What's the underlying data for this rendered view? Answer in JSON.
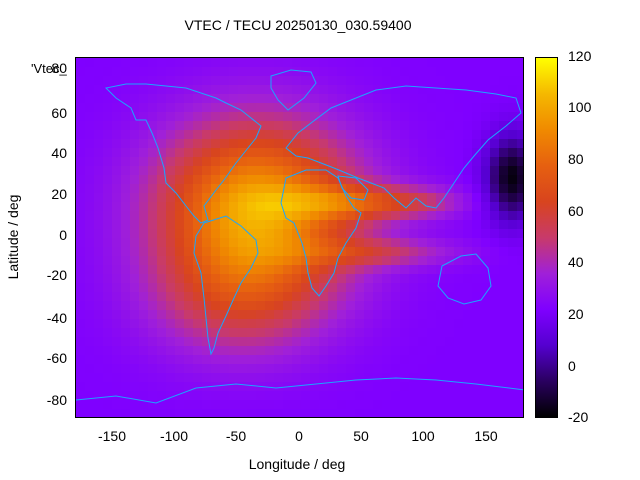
{
  "title": "VTEC / TECU 20250130_030.59400",
  "series_key": "'Vtec_",
  "x_axis": {
    "label": "Longitude / deg",
    "ticks": [
      "-150",
      "-100",
      "-50",
      "0",
      "50",
      "100",
      "150"
    ],
    "range": [
      -180,
      180
    ]
  },
  "y_axis": {
    "label": "Latitude / deg",
    "ticks": [
      "80",
      "60",
      "40",
      "20",
      "0",
      "-20",
      "-40",
      "-60",
      "-80"
    ],
    "range": [
      -90,
      90
    ]
  },
  "colorbar": {
    "ticks": [
      "120",
      "100",
      "80",
      "60",
      "40",
      "20",
      "0",
      "-20"
    ],
    "range": [
      -20,
      120
    ],
    "colors": [
      "#000000",
      "#2a0060",
      "#5500d0",
      "#7f00ff",
      "#a020d8",
      "#c83a6a",
      "#d8441e",
      "#e66010",
      "#f08a00",
      "#f5b800",
      "#ffff00"
    ]
  },
  "chart_data": {
    "type": "heatmap",
    "title": "VTEC / TECU 20250130_030.59400",
    "xlabel": "Longitude / deg",
    "ylabel": "Latitude / deg",
    "xlim": [
      -180,
      180
    ],
    "ylim": [
      -90,
      90
    ],
    "zlim": [
      -20,
      120
    ],
    "background_tec": 22,
    "features": [
      {
        "name": "south-atlantic-peak",
        "lon": -35,
        "lat": 15,
        "peak_tec": 100,
        "lon_sigma": 55,
        "lat_sigma": 30
      },
      {
        "name": "southern-crest",
        "lon": -50,
        "lat": -30,
        "peak_tec": 48,
        "lon_sigma": 50,
        "lat_sigma": 22
      },
      {
        "name": "africa-india-north-band",
        "lon": 50,
        "lat": 18,
        "peak_tec": 58,
        "lon_sigma": 45,
        "lat_sigma": 6
      },
      {
        "name": "indian-ocean-south-band",
        "lon": 60,
        "lat": -7,
        "peak_tec": 45,
        "lon_sigma": 45,
        "lat_sigma": 5
      },
      {
        "name": "east-asia-band",
        "lon": 100,
        "lat": 18,
        "peak_tec": 30,
        "lon_sigma": 20,
        "lat_sigma": 5
      },
      {
        "name": "pacific-depletion",
        "lon": 170,
        "lat": 30,
        "peak_tec": -18,
        "lon_sigma": 15,
        "lat_sigma": 15
      }
    ],
    "overlay": "coastlines"
  }
}
